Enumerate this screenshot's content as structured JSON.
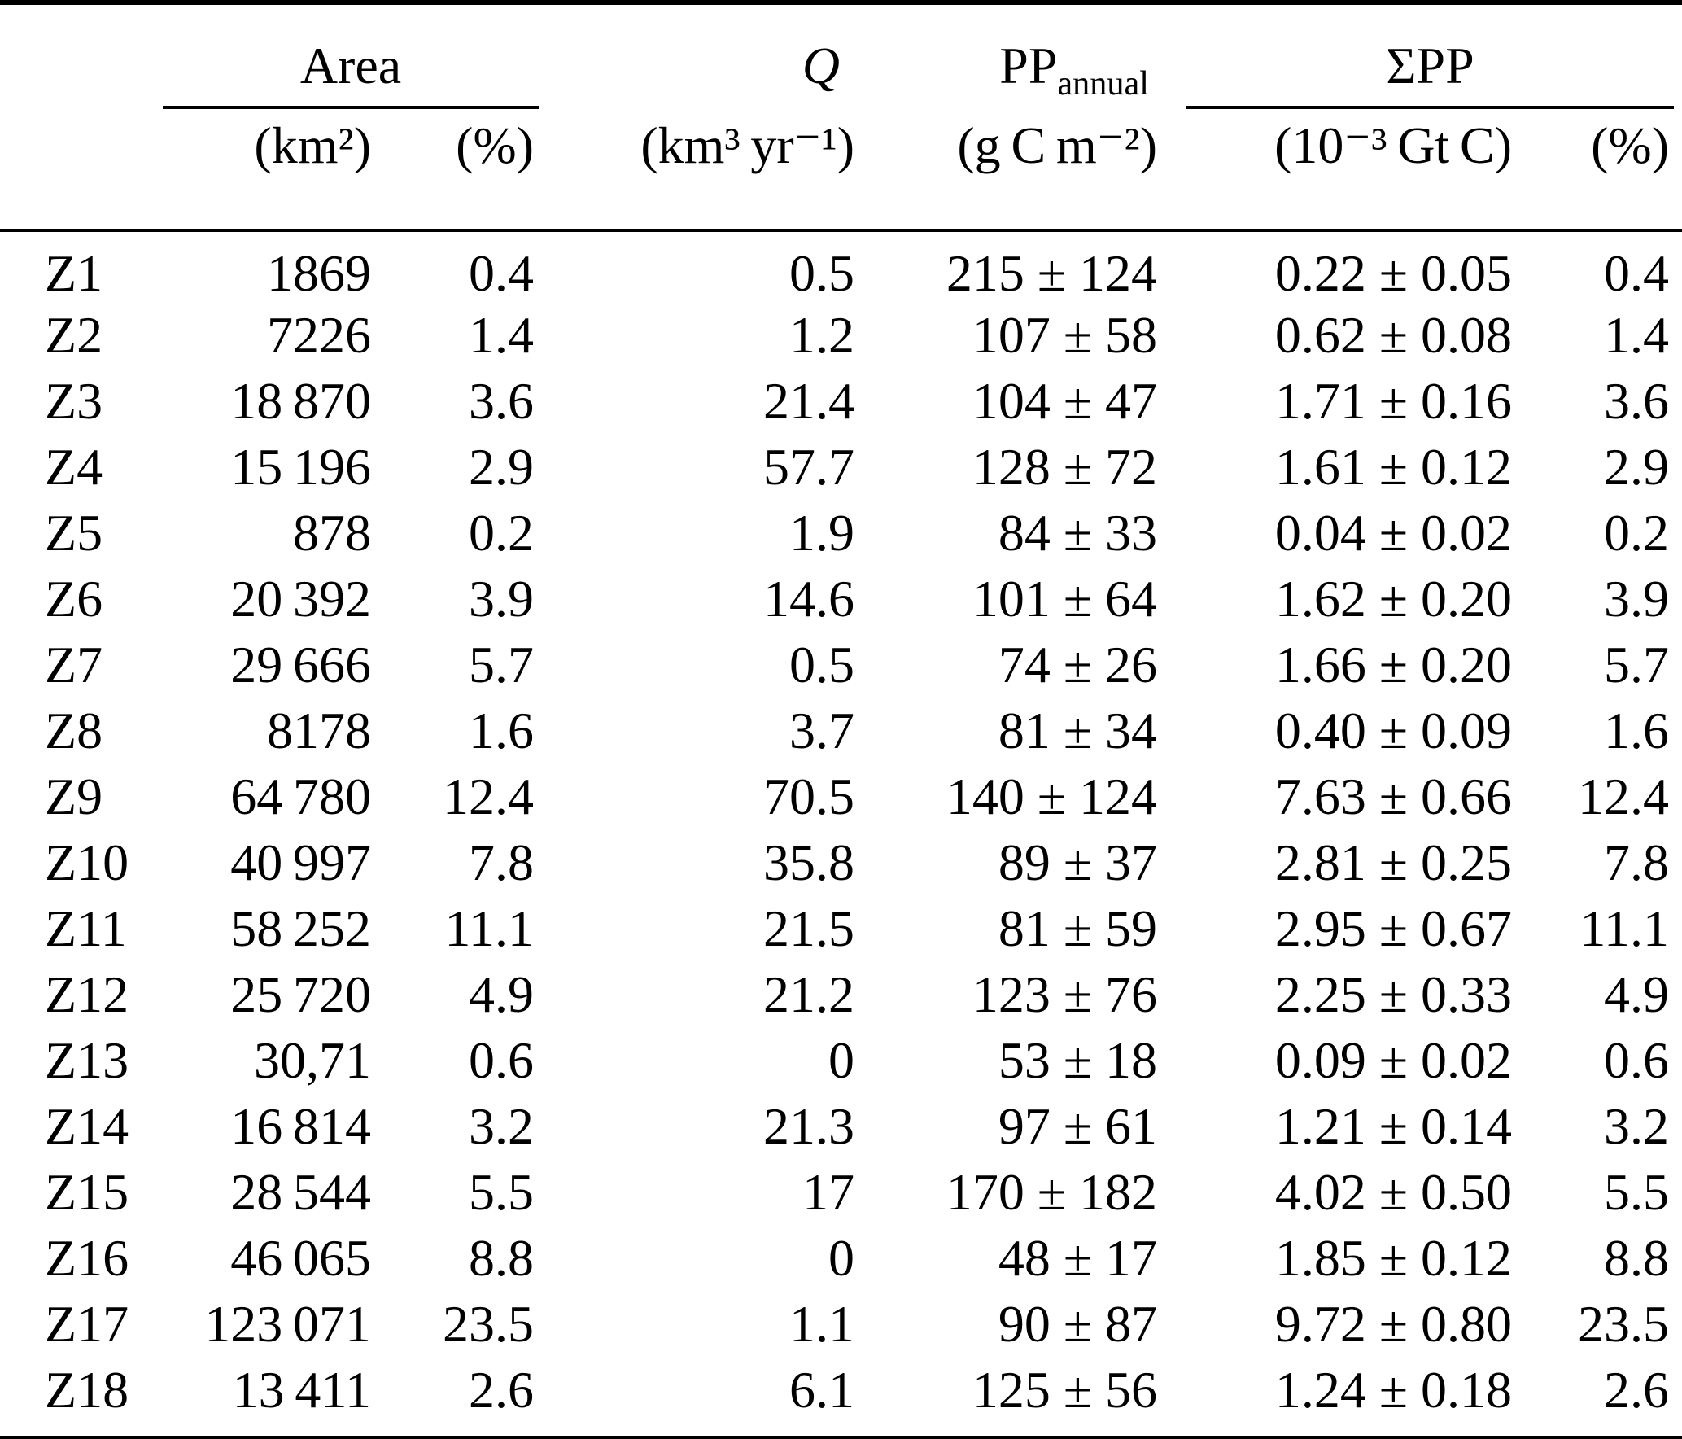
{
  "colors": {
    "background": "#ffffff",
    "text": "#000000",
    "rule": "#000000"
  },
  "table": {
    "group_headers": {
      "area": "Area",
      "q": "Q",
      "pp_base": "PP",
      "pp_sub": "annual",
      "spp": "ΣPP"
    },
    "unit_headers": {
      "zone": "",
      "area_km2": "(km²)",
      "area_pct": "(%)",
      "q": "(km³ yr⁻¹)",
      "pp_annual": "(g C m⁻²)",
      "spp": "(10⁻³ Gt C)",
      "spp_pct": "(%)"
    },
    "rows": [
      {
        "zone": "Z1",
        "area_km2": "1869",
        "area_pct": "0.4",
        "q": "0.5",
        "pp_annual": "215 ± 124",
        "spp": "0.22 ± 0.05",
        "spp_pct": "0.4"
      },
      {
        "zone": "Z2",
        "area_km2": "7226",
        "area_pct": "1.4",
        "q": "1.2",
        "pp_annual": "107 ± 58",
        "spp": "0.62 ± 0.08",
        "spp_pct": "1.4"
      },
      {
        "zone": "Z3",
        "area_km2": "18 870",
        "area_pct": "3.6",
        "q": "21.4",
        "pp_annual": "104 ± 47",
        "spp": "1.71 ± 0.16",
        "spp_pct": "3.6"
      },
      {
        "zone": "Z4",
        "area_km2": "15 196",
        "area_pct": "2.9",
        "q": "57.7",
        "pp_annual": "128 ± 72",
        "spp": "1.61 ± 0.12",
        "spp_pct": "2.9"
      },
      {
        "zone": "Z5",
        "area_km2": "878",
        "area_pct": "0.2",
        "q": "1.9",
        "pp_annual": "84 ± 33",
        "spp": "0.04 ± 0.02",
        "spp_pct": "0.2"
      },
      {
        "zone": "Z6",
        "area_km2": "20 392",
        "area_pct": "3.9",
        "q": "14.6",
        "pp_annual": "101 ± 64",
        "spp": "1.62 ± 0.20",
        "spp_pct": "3.9"
      },
      {
        "zone": "Z7",
        "area_km2": "29 666",
        "area_pct": "5.7",
        "q": "0.5",
        "pp_annual": "74 ± 26",
        "spp": "1.66 ± 0.20",
        "spp_pct": "5.7"
      },
      {
        "zone": "Z8",
        "area_km2": "8178",
        "area_pct": "1.6",
        "q": "3.7",
        "pp_annual": "81 ± 34",
        "spp": "0.40 ± 0.09",
        "spp_pct": "1.6"
      },
      {
        "zone": "Z9",
        "area_km2": "64 780",
        "area_pct": "12.4",
        "q": "70.5",
        "pp_annual": "140 ± 124",
        "spp": "7.63 ± 0.66",
        "spp_pct": "12.4"
      },
      {
        "zone": "Z10",
        "area_km2": "40 997",
        "area_pct": "7.8",
        "q": "35.8",
        "pp_annual": "89 ± 37",
        "spp": "2.81 ± 0.25",
        "spp_pct": "7.8"
      },
      {
        "zone": "Z11",
        "area_km2": "58 252",
        "area_pct": "11.1",
        "q": "21.5",
        "pp_annual": "81 ± 59",
        "spp": "2.95 ± 0.67",
        "spp_pct": "11.1"
      },
      {
        "zone": "Z12",
        "area_km2": "25 720",
        "area_pct": "4.9",
        "q": "21.2",
        "pp_annual": "123 ± 76",
        "spp": "2.25 ± 0.33",
        "spp_pct": "4.9"
      },
      {
        "zone": "Z13",
        "area_km2": "30,71",
        "area_pct": "0.6",
        "q": "0",
        "pp_annual": "53 ± 18",
        "spp": "0.09 ± 0.02",
        "spp_pct": "0.6"
      },
      {
        "zone": "Z14",
        "area_km2": "16 814",
        "area_pct": "3.2",
        "q": "21.3",
        "pp_annual": "97 ± 61",
        "spp": "1.21 ± 0.14",
        "spp_pct": "3.2"
      },
      {
        "zone": "Z15",
        "area_km2": "28 544",
        "area_pct": "5.5",
        "q": "17",
        "pp_annual": "170 ± 182",
        "spp": "4.02 ± 0.50",
        "spp_pct": "5.5"
      },
      {
        "zone": "Z16",
        "area_km2": "46 065",
        "area_pct": "8.8",
        "q": "0",
        "pp_annual": "48 ± 17",
        "spp": "1.85 ± 0.12",
        "spp_pct": "8.8"
      },
      {
        "zone": "Z17",
        "area_km2": "123 071",
        "area_pct": "23.5",
        "q": "1.1",
        "pp_annual": "90 ± 87",
        "spp": "9.72 ± 0.80",
        "spp_pct": "23.5"
      },
      {
        "zone": "Z18",
        "area_km2": "13 411",
        "area_pct": "2.6",
        "q": "6.1",
        "pp_annual": "125 ± 56",
        "spp": "1.24 ± 0.18",
        "spp_pct": "2.6"
      }
    ]
  }
}
